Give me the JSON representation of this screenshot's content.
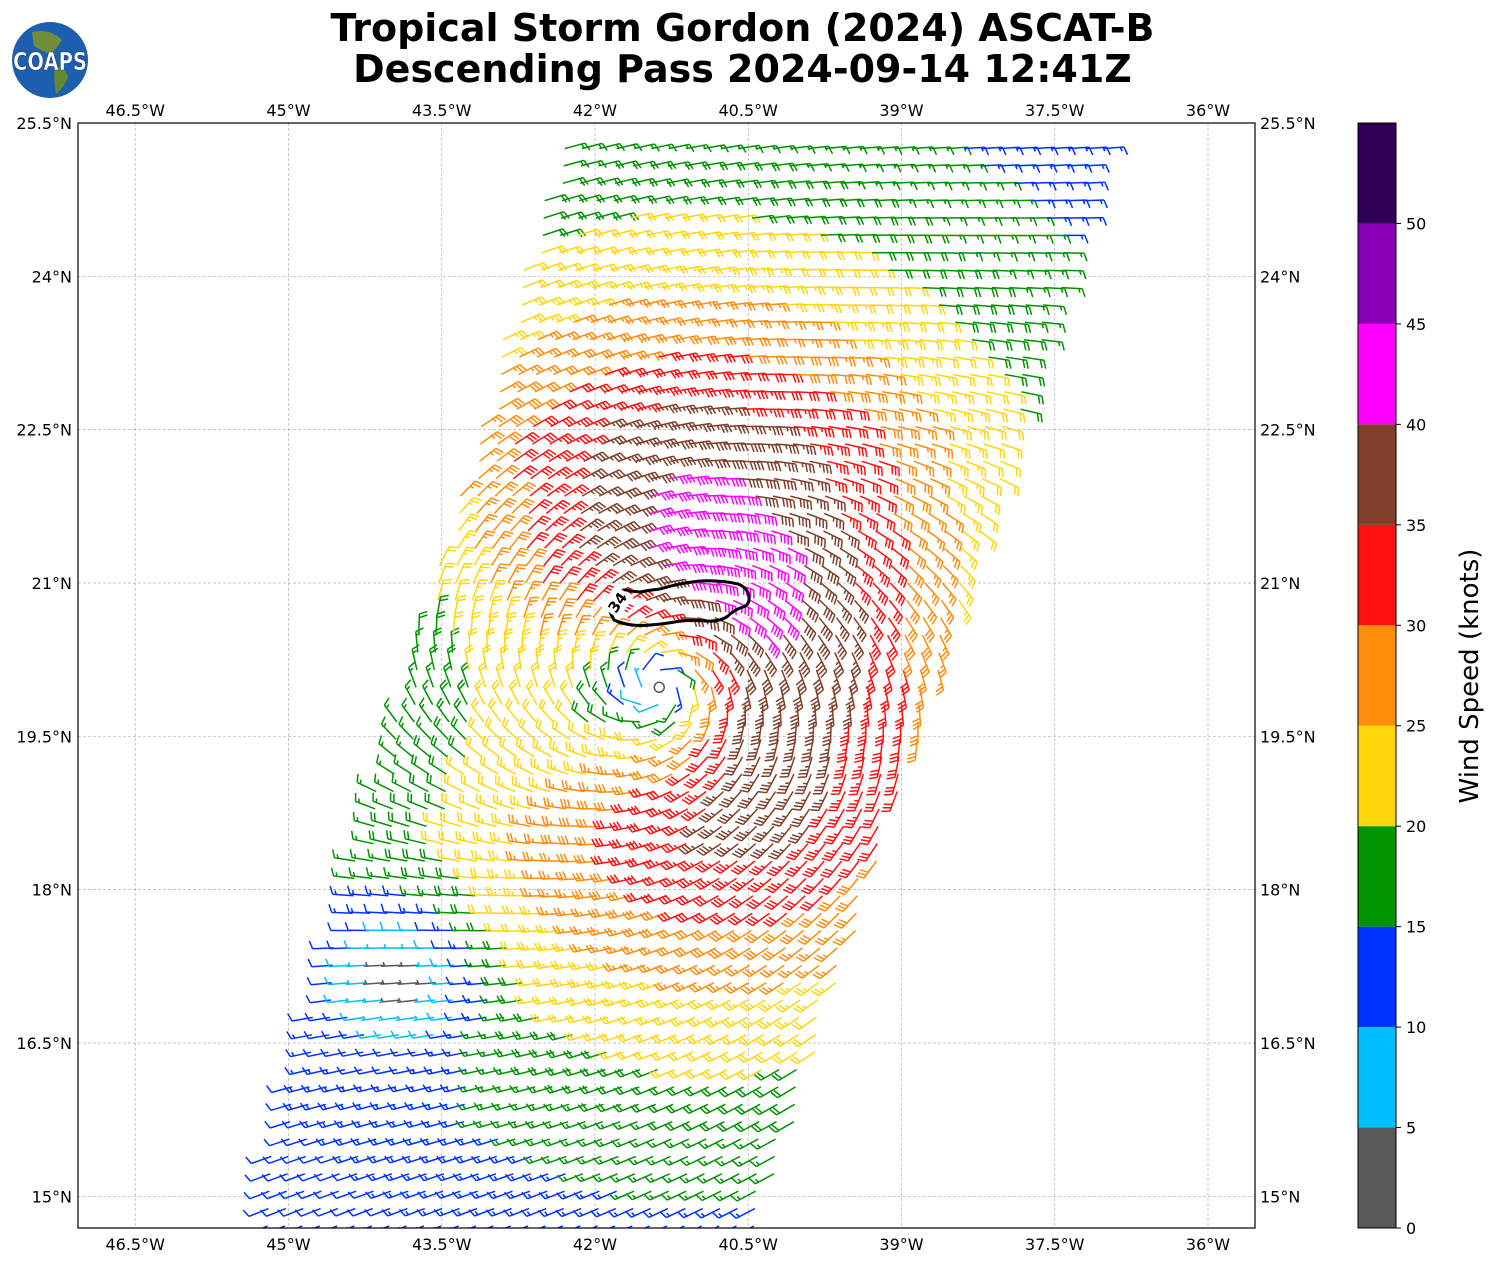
{
  "title": {
    "line1": "Tropical Storm Gordon (2024) ASCAT-B",
    "line2": "Descending Pass 2024-09-14 12:41Z"
  },
  "logo": {
    "text": "COAPS"
  },
  "chart_data": {
    "type": "wind-barbs-map",
    "title": "Tropical Storm Gordon (2024) ASCAT-B Descending Pass 2024-09-14 12:41Z",
    "lon_range": [
      -47.06,
      -35.54
    ],
    "lat_range": [
      14.69,
      25.5
    ],
    "grid": true,
    "x_ticks": [
      {
        "value": -46.5,
        "label": "46.5°W"
      },
      {
        "value": -45.0,
        "label": "45°W"
      },
      {
        "value": -43.5,
        "label": "43.5°W"
      },
      {
        "value": -42.0,
        "label": "42°W"
      },
      {
        "value": -40.5,
        "label": "40.5°W"
      },
      {
        "value": -39.0,
        "label": "39°W"
      },
      {
        "value": -37.5,
        "label": "37.5°W"
      },
      {
        "value": -36.0,
        "label": "36°W"
      }
    ],
    "y_ticks": [
      {
        "value": 25.5,
        "label": "25.5°N"
      },
      {
        "value": 24.0,
        "label": "24°N"
      },
      {
        "value": 22.5,
        "label": "22.5°N"
      },
      {
        "value": 21.0,
        "label": "21°N"
      },
      {
        "value": 19.5,
        "label": "19.5°N"
      },
      {
        "value": 18.0,
        "label": "18°N"
      },
      {
        "value": 16.5,
        "label": "16.5°N"
      },
      {
        "value": 15.0,
        "label": "15°N"
      }
    ],
    "colorbar": {
      "label": "Wind Speed (knots)",
      "bounds": [
        0,
        5,
        10,
        15,
        20,
        25,
        30,
        35,
        40,
        45,
        50,
        55
      ],
      "tick_labels": [
        "0",
        "5",
        "10",
        "15",
        "20",
        "25",
        "30",
        "35",
        "40",
        "45",
        "50"
      ],
      "colors": [
        "#595959",
        "#00bfff",
        "#0033ff",
        "#009400",
        "#ffd60a",
        "#ff8c0a",
        "#ff1010",
        "#7f3f2a",
        "#ff00ff",
        "#8a00b4",
        "#2e0057"
      ]
    },
    "contour": {
      "level": 34,
      "label": "34"
    },
    "swath": {
      "corners": [
        [
          -42.34,
          25.38
        ],
        [
          -36.93,
          25.43
        ],
        [
          -40.38,
          14.69
        ],
        [
          -45.33,
          14.84
        ]
      ]
    },
    "wind_field": {
      "center": [
        -41.36,
        19.95
      ],
      "vmax_kt": 29,
      "rmax_deg": 1.25,
      "weak_zone_center": [
        -43.8,
        17.1
      ],
      "grid_step_deg": 0.17
    }
  }
}
